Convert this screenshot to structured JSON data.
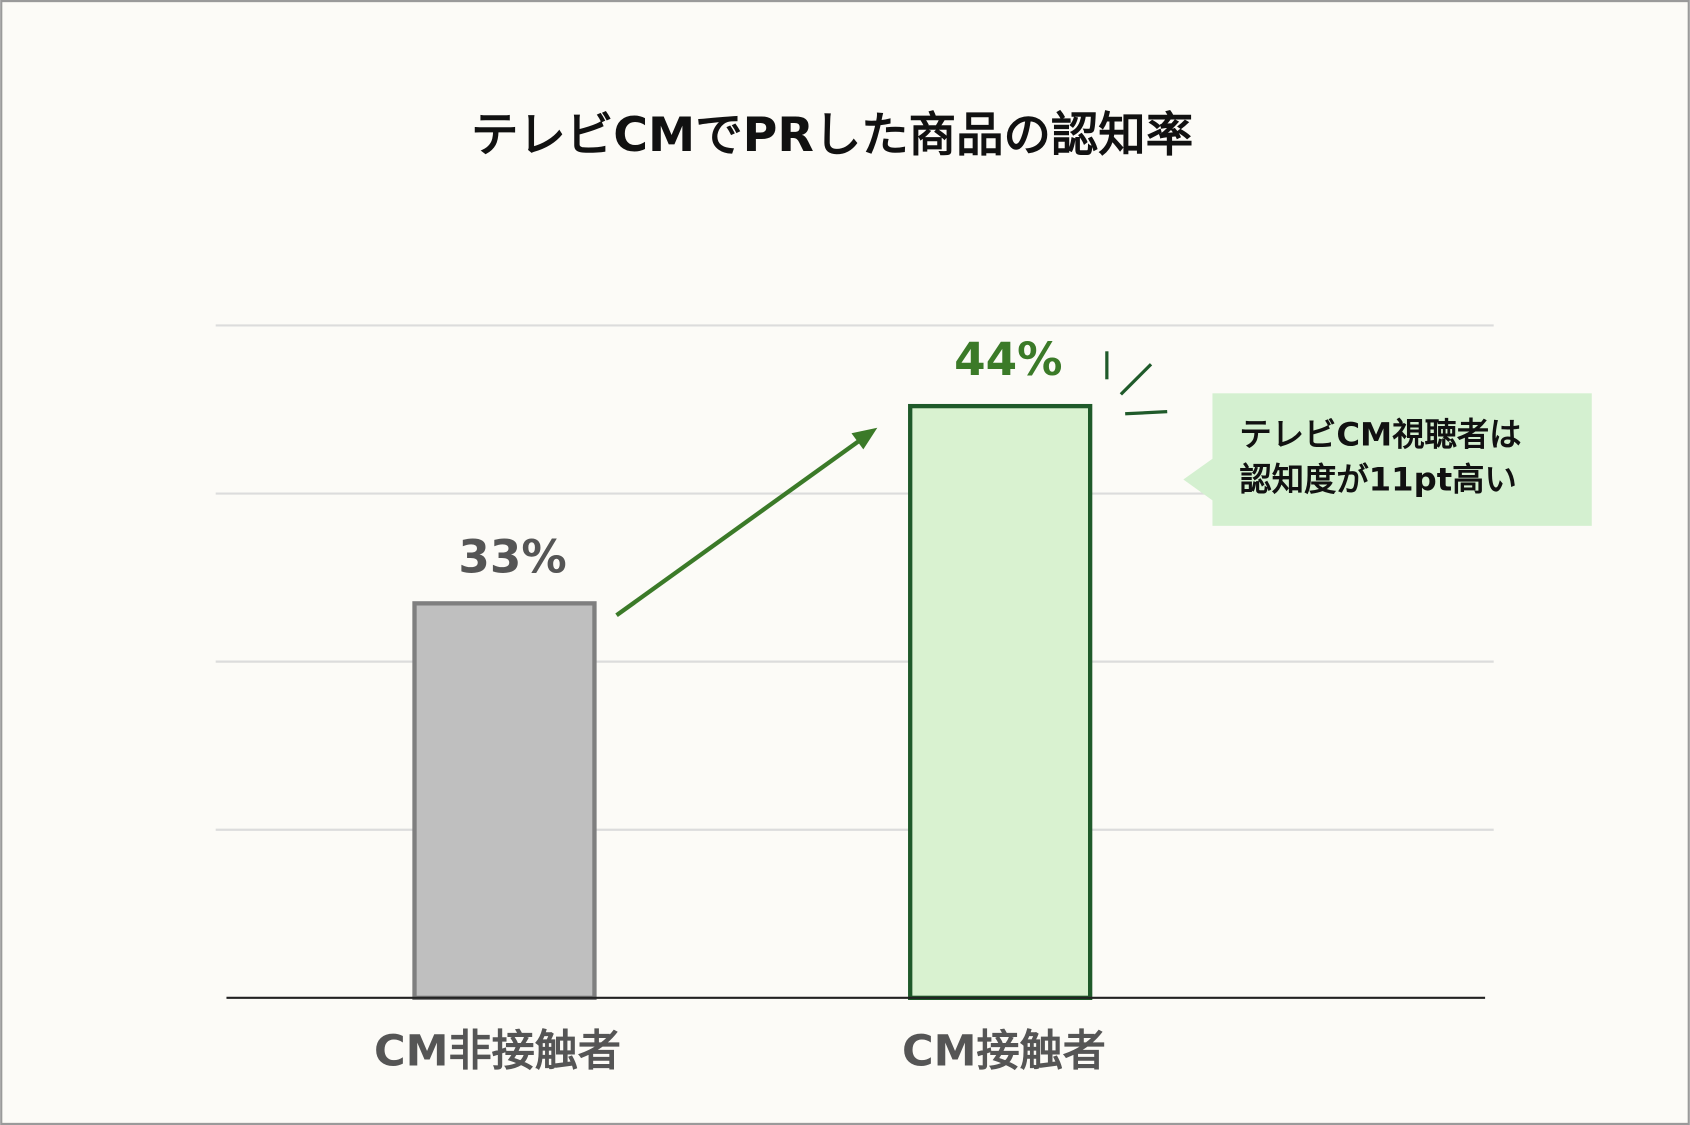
{
  "chart_data": {
    "type": "bar",
    "title": "テレビCMでPRした商品の認知率",
    "categories": [
      "CM非接触者",
      "CM接触者"
    ],
    "values": [
      33,
      44
    ],
    "value_labels": [
      "33%",
      "44%"
    ],
    "colors": [
      "#bfbfbf",
      "#d9f2d0"
    ],
    "edge_colors": [
      "#7f7f7f",
      "#1f5a2a"
    ],
    "label_colors": [
      "#555555",
      "#3b7a28"
    ],
    "ylim": [
      11,
      48.5
    ],
    "yticks": [
      20.375,
      29.75,
      39.125,
      48.5
    ],
    "grid": true,
    "annotation": [
      "テレビCM視聴者は",
      "認知度が11pt高い"
    ]
  }
}
